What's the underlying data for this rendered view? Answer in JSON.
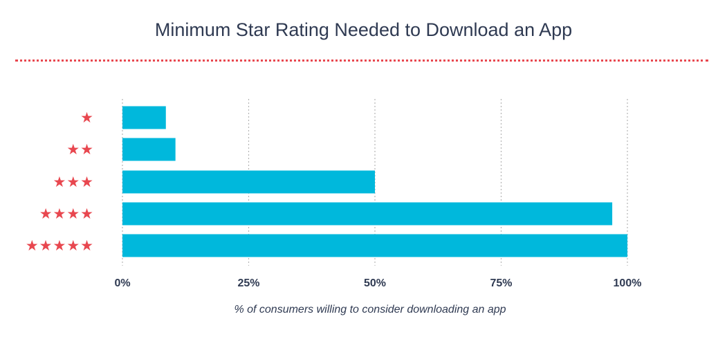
{
  "chart_data": {
    "type": "bar",
    "orientation": "horizontal",
    "title": "Minimum Star Rating Needed to Download an App",
    "xlabel": "% of consumers willing to consider downloading an app",
    "ylabel": "",
    "categories": [
      "★",
      "★★",
      "★★★",
      "★★★★",
      "★★★★★"
    ],
    "category_ratings": [
      1,
      2,
      3,
      4,
      5
    ],
    "values": [
      8.6,
      10.5,
      50,
      97,
      100
    ],
    "xlim": [
      0,
      100
    ],
    "x_ticks": [
      0,
      25,
      50,
      75,
      100
    ],
    "x_tick_labels": [
      "0%",
      "25%",
      "50%",
      "75%",
      "100%"
    ],
    "grid": "vertical dotted",
    "legend": "none",
    "colors": {
      "bar": "#00b8dc",
      "star": "#e8474f",
      "text": "#2f3a52",
      "grid": "#b3b3b3",
      "divider": "#e8474f"
    }
  }
}
